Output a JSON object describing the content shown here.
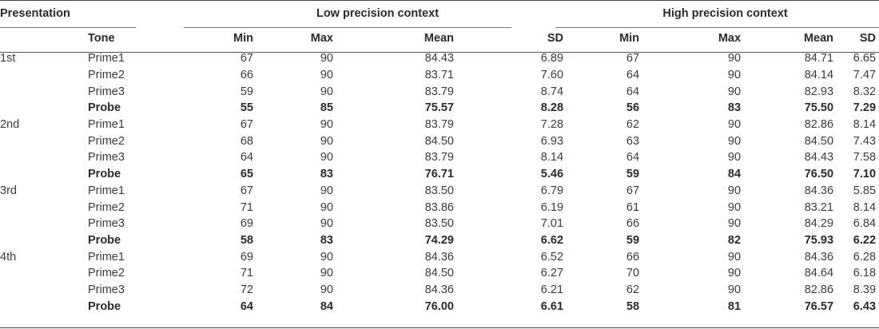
{
  "headers": {
    "presentation": "Presentation",
    "tone": "Tone",
    "low_group": "Low precision context",
    "high_group": "High precision context",
    "min": "Min",
    "max": "Max",
    "mean": "Mean",
    "sd": "SD"
  },
  "rows": [
    {
      "presentation": "1st",
      "tone": "Prime1",
      "low": [
        "67",
        "90",
        "84.43",
        "6.89"
      ],
      "high": [
        "67",
        "90",
        "84.71",
        "6.65"
      ],
      "bold": false
    },
    {
      "presentation": "",
      "tone": "Prime2",
      "low": [
        "66",
        "90",
        "83.71",
        "7.60"
      ],
      "high": [
        "64",
        "90",
        "84.14",
        "7.47"
      ],
      "bold": false
    },
    {
      "presentation": "",
      "tone": "Prime3",
      "low": [
        "59",
        "90",
        "83.79",
        "8.74"
      ],
      "high": [
        "64",
        "90",
        "82.93",
        "8.32"
      ],
      "bold": false
    },
    {
      "presentation": "",
      "tone": "Probe",
      "low": [
        "55",
        "85",
        "75.57",
        "8.28"
      ],
      "high": [
        "56",
        "83",
        "75.50",
        "7.29"
      ],
      "bold": true
    },
    {
      "presentation": "2nd",
      "tone": "Prime1",
      "low": [
        "67",
        "90",
        "83.79",
        "7.28"
      ],
      "high": [
        "62",
        "90",
        "82.86",
        "8.14"
      ],
      "bold": false
    },
    {
      "presentation": "",
      "tone": "Prime2",
      "low": [
        "68",
        "90",
        "84.50",
        "6.93"
      ],
      "high": [
        "63",
        "90",
        "84.50",
        "7.43"
      ],
      "bold": false
    },
    {
      "presentation": "",
      "tone": "Prime3",
      "low": [
        "64",
        "90",
        "83.79",
        "8.14"
      ],
      "high": [
        "64",
        "90",
        "84.43",
        "7.58"
      ],
      "bold": false
    },
    {
      "presentation": "",
      "tone": "Probe",
      "low": [
        "65",
        "83",
        "76.71",
        "5.46"
      ],
      "high": [
        "59",
        "84",
        "76.50",
        "7.10"
      ],
      "bold": true
    },
    {
      "presentation": "3rd",
      "tone": "Prime1",
      "low": [
        "67",
        "90",
        "83.50",
        "6.79"
      ],
      "high": [
        "67",
        "90",
        "84.36",
        "5.85"
      ],
      "bold": false
    },
    {
      "presentation": "",
      "tone": "Prime2",
      "low": [
        "71",
        "90",
        "83.86",
        "6.19"
      ],
      "high": [
        "61",
        "90",
        "83.21",
        "8.14"
      ],
      "bold": false
    },
    {
      "presentation": "",
      "tone": "Prime3",
      "low": [
        "69",
        "90",
        "83.50",
        "7.01"
      ],
      "high": [
        "66",
        "90",
        "84.29",
        "6.84"
      ],
      "bold": false
    },
    {
      "presentation": "",
      "tone": "Probe",
      "low": [
        "58",
        "83",
        "74.29",
        "6.62"
      ],
      "high": [
        "59",
        "82",
        "75.93",
        "6.22"
      ],
      "bold": true
    },
    {
      "presentation": "4th",
      "tone": "Prime1",
      "low": [
        "69",
        "90",
        "84.36",
        "6.52"
      ],
      "high": [
        "66",
        "90",
        "84.36",
        "6.28"
      ],
      "bold": false
    },
    {
      "presentation": "",
      "tone": "Prime2",
      "low": [
        "71",
        "90",
        "84.50",
        "6.27"
      ],
      "high": [
        "70",
        "90",
        "84.64",
        "6.18"
      ],
      "bold": false
    },
    {
      "presentation": "",
      "tone": "Prime3",
      "low": [
        "72",
        "90",
        "84.36",
        "6.21"
      ],
      "high": [
        "62",
        "90",
        "82.86",
        "8.39"
      ],
      "bold": false
    },
    {
      "presentation": "",
      "tone": "Probe",
      "low": [
        "64",
        "84",
        "76.00",
        "6.61"
      ],
      "high": [
        "58",
        "81",
        "76.57",
        "6.43"
      ],
      "bold": true
    }
  ]
}
